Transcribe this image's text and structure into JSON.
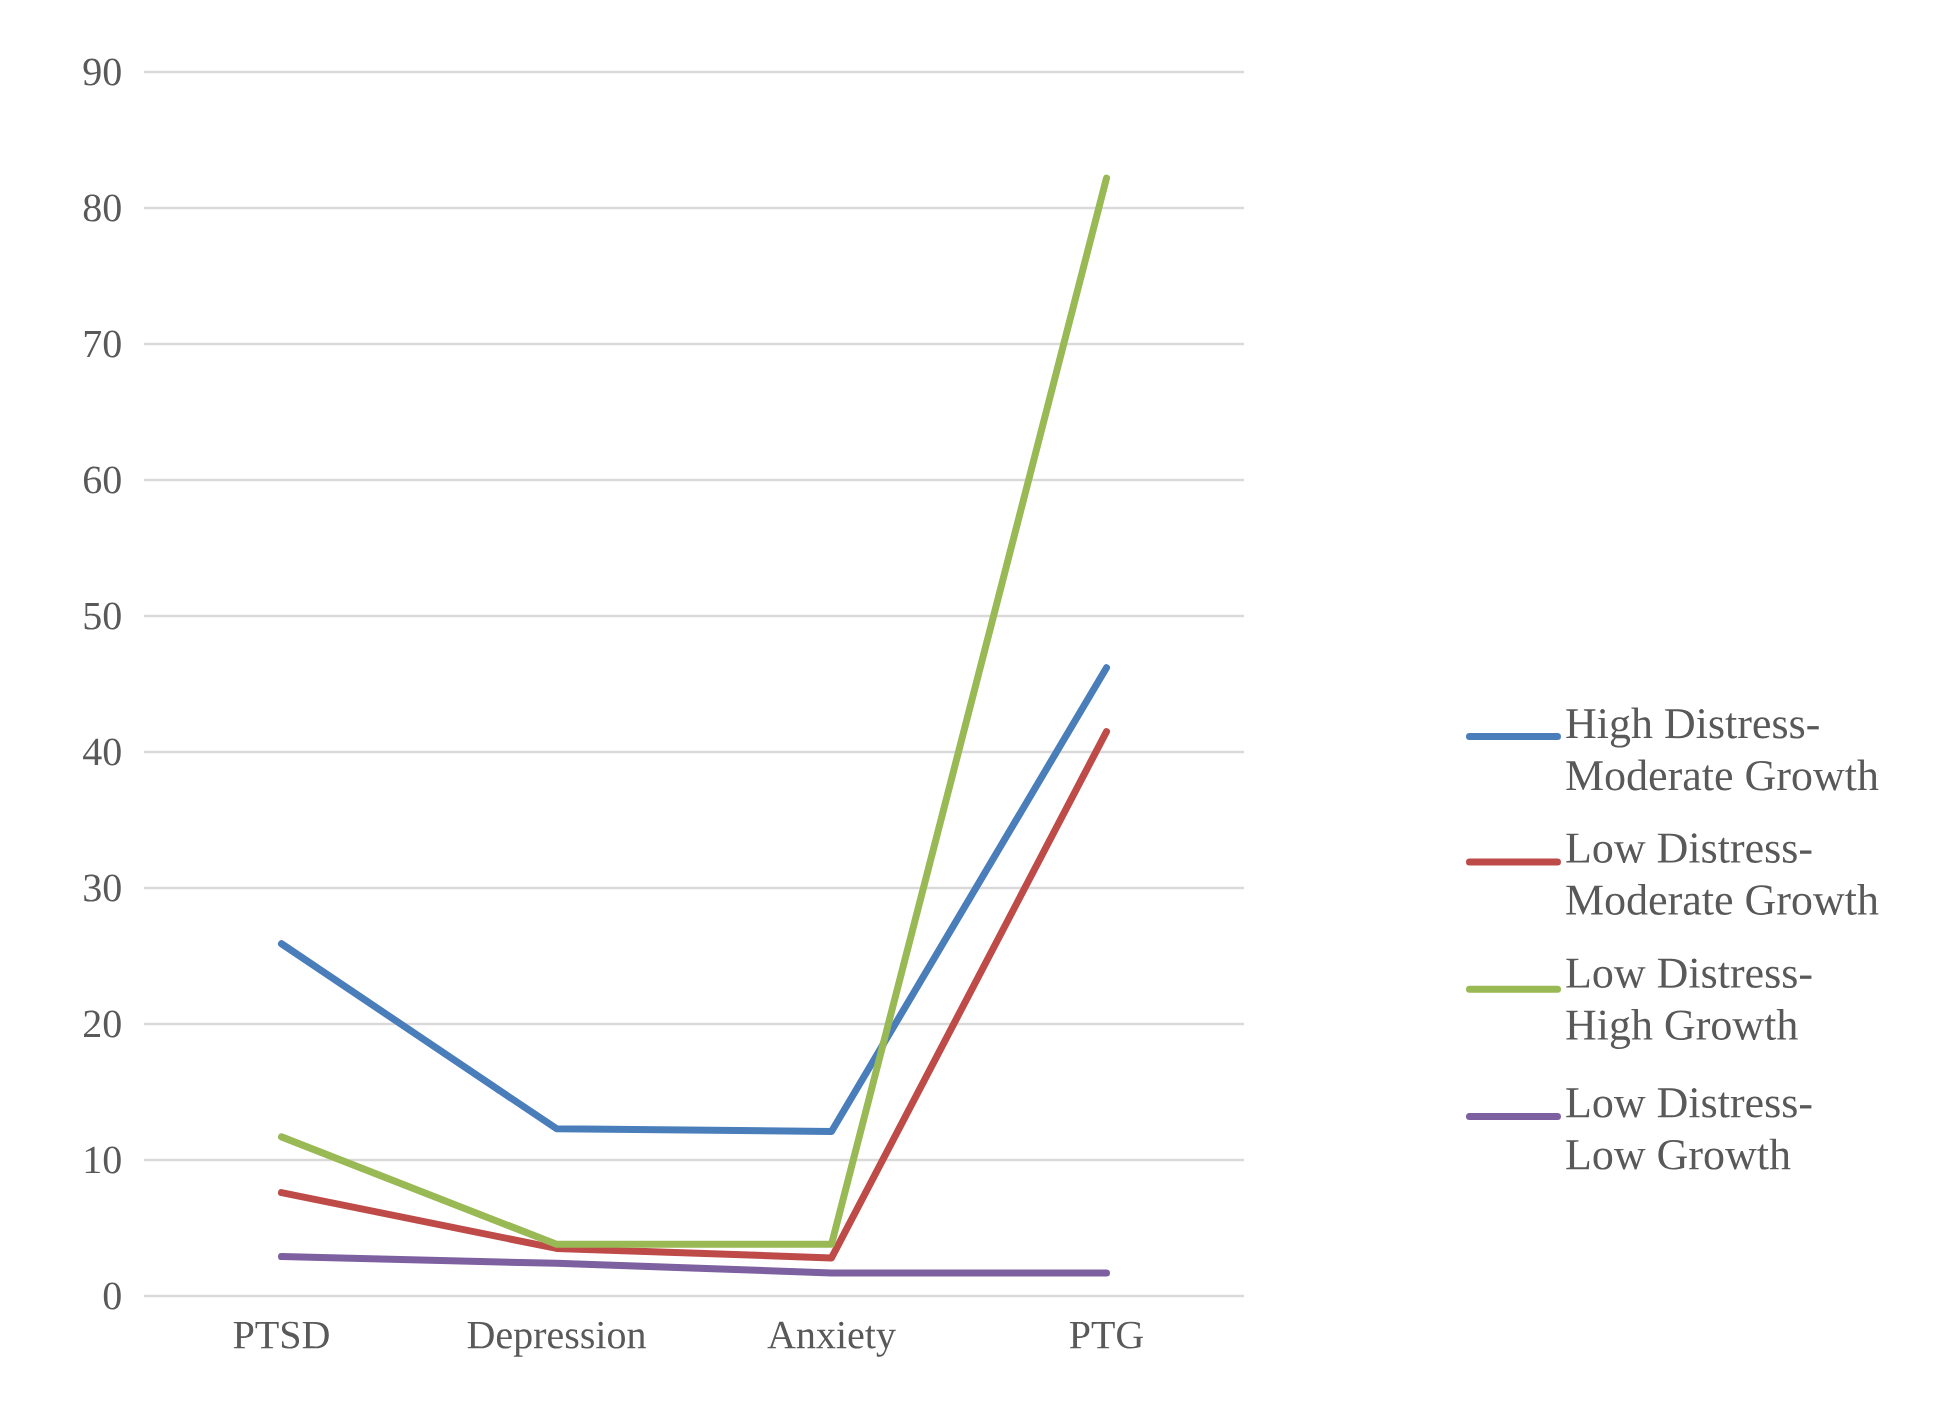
{
  "chart_data": {
    "type": "line",
    "categories": [
      "PTSD",
      "Depression",
      "Anxiety",
      "PTG"
    ],
    "series": [
      {
        "name": "High Distress-Moderate Growth",
        "color": "#4a7ebb",
        "values": [
          25.9,
          12.3,
          12.1,
          46.2
        ]
      },
      {
        "name": "Low Distress-Moderate Growth",
        "color": "#be4b48",
        "values": [
          7.6,
          3.5,
          2.8,
          41.5
        ]
      },
      {
        "name": "Low Distress-High Growth",
        "color": "#98b954",
        "values": [
          11.7,
          3.8,
          3.8,
          82.2
        ]
      },
      {
        "name": "Low Distress-Low Growth",
        "color": "#7d60a0",
        "values": [
          2.9,
          2.4,
          1.7,
          1.7
        ]
      }
    ],
    "ylim": [
      0,
      90
    ],
    "yticks": [
      0,
      10,
      20,
      30,
      40,
      50,
      60,
      70,
      80,
      90
    ],
    "grid": "y",
    "legend": "right",
    "line_style": "solid"
  }
}
